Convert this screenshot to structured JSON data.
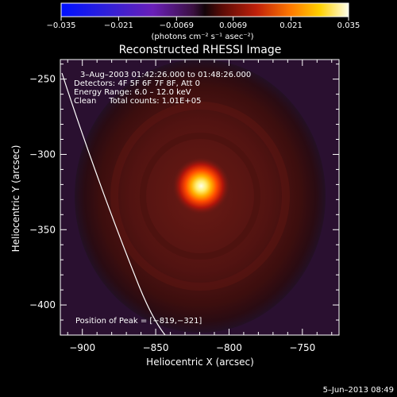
{
  "chart_data": {
    "type": "heatmap",
    "title": "Reconstructed RHESSI Image",
    "xlabel": "Heliocentric X (arcsec)",
    "ylabel": "Heliocentric Y (arcsec)",
    "xlim": [
      -915,
      -725
    ],
    "ylim": [
      -420,
      -237
    ],
    "x_ticks": [
      -900,
      -850,
      -800,
      -750
    ],
    "x_tick_labels": [
      "−900",
      "−850",
      "−800",
      "−750"
    ],
    "y_ticks": [
      -250,
      -300,
      -350,
      -400
    ],
    "y_tick_labels": [
      "−250",
      "−300",
      "−350",
      "−400"
    ],
    "colorbar": {
      "range": [
        -0.035,
        0.035
      ],
      "ticks": [
        -0.035,
        -0.021,
        -0.0069,
        0.0069,
        0.021,
        0.035
      ],
      "tick_labels": [
        "−0.035",
        "−0.021",
        "−0.0069",
        "0.0069",
        "0.021",
        "0.035"
      ],
      "units_label": "(photons cm⁻² s⁻¹ asec⁻²)"
    },
    "annotations": {
      "time_range": "3–Aug–2003 01:42:26.000 to 01:48:26.000",
      "detectors": "Detectors: 4F 5F 6F 7F 8F, Att 0",
      "energy_range": "Energy Range: 6.0 – 12.0 keV",
      "clean_counts": "Clean     Total counts: 1.01E+05",
      "peak_position": "Position of Peak = [−819,−321]"
    },
    "peak": {
      "x": -819,
      "y": -321
    },
    "colors": {
      "background": "#000000",
      "limb_line": "#ffffff"
    }
  },
  "footer": {
    "date_stamp": "5–Jun–2013 08:49"
  }
}
